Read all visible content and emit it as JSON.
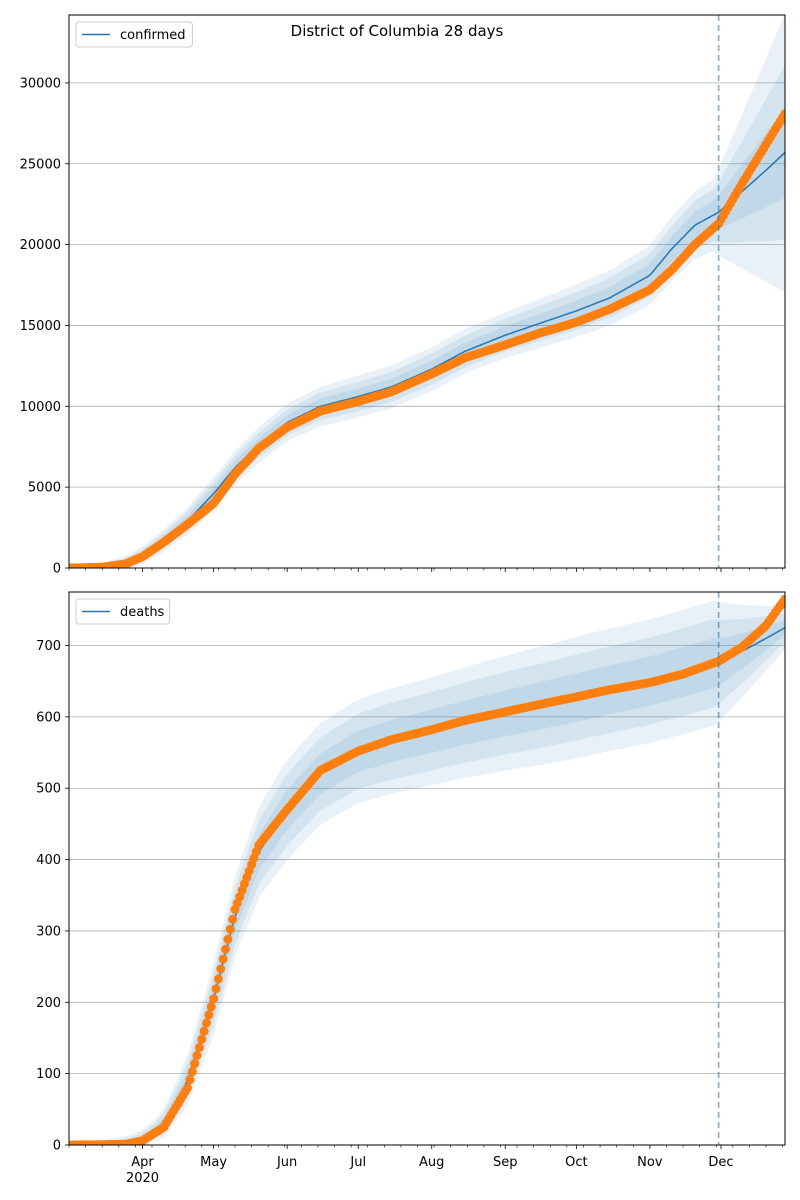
{
  "title": "District of Columbia 28 days",
  "colors": {
    "model": "#1f77b4",
    "observed": "#ff7f0e",
    "band": "#1f77b4",
    "grid": "#b0b0b0",
    "vline": "#1f77b4"
  },
  "x_axis": {
    "range": [
      "2020-03-01",
      "2020-12-28"
    ],
    "month_ticks": [
      {
        "date": "2020-04-01",
        "label": "Apr",
        "sublabel": "2020"
      },
      {
        "date": "2020-05-01",
        "label": "May",
        "sublabel": ""
      },
      {
        "date": "2020-06-01",
        "label": "Jun",
        "sublabel": ""
      },
      {
        "date": "2020-07-01",
        "label": "Jul",
        "sublabel": ""
      },
      {
        "date": "2020-08-01",
        "label": "Aug",
        "sublabel": ""
      },
      {
        "date": "2020-09-01",
        "label": "Sep",
        "sublabel": ""
      },
      {
        "date": "2020-10-01",
        "label": "Oct",
        "sublabel": ""
      },
      {
        "date": "2020-11-01",
        "label": "Nov",
        "sublabel": ""
      },
      {
        "date": "2020-12-01",
        "label": "Dec",
        "sublabel": ""
      }
    ],
    "forecast_start": "2020-11-30"
  },
  "chart_data": [
    {
      "type": "line",
      "series": [
        {
          "name": "confirmed",
          "kind": "model"
        },
        {
          "kind": "observed"
        }
      ],
      "ylim": [
        0,
        34200
      ],
      "yticks": [
        0,
        5000,
        10000,
        15000,
        20000,
        25000,
        30000
      ],
      "grid": true,
      "legend": "top-left",
      "model_points": [
        [
          "2020-03-01",
          0
        ],
        [
          "2020-03-15",
          60
        ],
        [
          "2020-03-25",
          300
        ],
        [
          "2020-04-01",
          800
        ],
        [
          "2020-04-10",
          1700
        ],
        [
          "2020-04-20",
          2900
        ],
        [
          "2020-05-01",
          4600
        ],
        [
          "2020-05-10",
          6200
        ],
        [
          "2020-05-20",
          7600
        ],
        [
          "2020-06-01",
          9000
        ],
        [
          "2020-06-15",
          10000
        ],
        [
          "2020-07-01",
          10600
        ],
        [
          "2020-07-15",
          11200
        ],
        [
          "2020-08-01",
          12300
        ],
        [
          "2020-08-15",
          13400
        ],
        [
          "2020-09-01",
          14400
        ],
        [
          "2020-09-15",
          15100
        ],
        [
          "2020-10-01",
          15900
        ],
        [
          "2020-10-15",
          16700
        ],
        [
          "2020-11-01",
          18100
        ],
        [
          "2020-11-10",
          19700
        ],
        [
          "2020-11-20",
          21200
        ],
        [
          "2020-11-30",
          22000
        ],
        [
          "2020-12-10",
          23300
        ],
        [
          "2020-12-20",
          24600
        ],
        [
          "2020-12-28",
          25700
        ]
      ],
      "observed_points": [
        [
          "2020-03-01",
          0
        ],
        [
          "2020-03-15",
          50
        ],
        [
          "2020-03-25",
          260
        ],
        [
          "2020-04-01",
          700
        ],
        [
          "2020-04-10",
          1600
        ],
        [
          "2020-04-20",
          2700
        ],
        [
          "2020-05-01",
          4000
        ],
        [
          "2020-05-10",
          5800
        ],
        [
          "2020-05-20",
          7400
        ],
        [
          "2020-06-01",
          8700
        ],
        [
          "2020-06-15",
          9700
        ],
        [
          "2020-07-01",
          10300
        ],
        [
          "2020-07-15",
          10900
        ],
        [
          "2020-08-01",
          12000
        ],
        [
          "2020-08-15",
          13000
        ],
        [
          "2020-09-01",
          13800
        ],
        [
          "2020-09-15",
          14500
        ],
        [
          "2020-10-01",
          15200
        ],
        [
          "2020-10-15",
          16000
        ],
        [
          "2020-11-01",
          17200
        ],
        [
          "2020-11-10",
          18400
        ],
        [
          "2020-11-20",
          20000
        ],
        [
          "2020-11-30",
          21300
        ],
        [
          "2020-12-10",
          23800
        ],
        [
          "2020-12-20",
          26200
        ],
        [
          "2020-12-28",
          28100
        ]
      ],
      "bands": [
        {
          "spread": [
            [
              0,
              0
            ],
            [
              0.05,
              300
            ],
            [
              0.2,
              1000
            ],
            [
              0.4,
              1300
            ],
            [
              0.6,
              1400
            ],
            [
              0.8,
              1800
            ],
            [
              0.9,
              2200
            ],
            [
              1,
              8600
            ]
          ]
        },
        {
          "spread": [
            [
              0,
              0
            ],
            [
              0.05,
              200
            ],
            [
              0.2,
              700
            ],
            [
              0.4,
              900
            ],
            [
              0.6,
              1000
            ],
            [
              0.8,
              1300
            ],
            [
              0.9,
              1600
            ],
            [
              1,
              5400
            ]
          ]
        },
        {
          "spread": [
            [
              0,
              0
            ],
            [
              0.05,
              100
            ],
            [
              0.2,
              400
            ],
            [
              0.4,
              500
            ],
            [
              0.6,
              550
            ],
            [
              0.8,
              700
            ],
            [
              0.9,
              900
            ],
            [
              1,
              2800
            ]
          ]
        }
      ]
    },
    {
      "type": "line",
      "series": [
        {
          "name": "deaths",
          "kind": "model"
        },
        {
          "kind": "observed"
        }
      ],
      "ylim": [
        0,
        775
      ],
      "yticks": [
        0,
        100,
        200,
        300,
        400,
        500,
        600,
        700
      ],
      "grid": true,
      "legend": "top-left",
      "model_points": [
        [
          "2020-03-01",
          0
        ],
        [
          "2020-03-25",
          2
        ],
        [
          "2020-04-01",
          8
        ],
        [
          "2020-04-10",
          30
        ],
        [
          "2020-04-20",
          90
        ],
        [
          "2020-05-01",
          205
        ],
        [
          "2020-05-10",
          320
        ],
        [
          "2020-05-20",
          410
        ],
        [
          "2020-06-01",
          470
        ],
        [
          "2020-06-15",
          520
        ],
        [
          "2020-07-01",
          552
        ],
        [
          "2020-07-15",
          566
        ],
        [
          "2020-08-01",
          580
        ],
        [
          "2020-08-15",
          592
        ],
        [
          "2020-09-01",
          605
        ],
        [
          "2020-09-15",
          615
        ],
        [
          "2020-10-01",
          627
        ],
        [
          "2020-10-15",
          638
        ],
        [
          "2020-11-01",
          650
        ],
        [
          "2020-11-15",
          663
        ],
        [
          "2020-11-30",
          677
        ],
        [
          "2020-12-10",
          692
        ],
        [
          "2020-12-20",
          710
        ],
        [
          "2020-12-28",
          725
        ]
      ],
      "observed_points": [
        [
          "2020-03-01",
          0
        ],
        [
          "2020-03-25",
          1
        ],
        [
          "2020-04-01",
          6
        ],
        [
          "2020-04-10",
          25
        ],
        [
          "2020-04-20",
          80
        ],
        [
          "2020-05-01",
          205
        ],
        [
          "2020-05-10",
          330
        ],
        [
          "2020-05-20",
          420
        ],
        [
          "2020-06-01",
          470
        ],
        [
          "2020-06-15",
          525
        ],
        [
          "2020-07-01",
          552
        ],
        [
          "2020-07-15",
          568
        ],
        [
          "2020-08-01",
          582
        ],
        [
          "2020-08-15",
          595
        ],
        [
          "2020-09-01",
          607
        ],
        [
          "2020-09-15",
          617
        ],
        [
          "2020-10-01",
          628
        ],
        [
          "2020-10-15",
          638
        ],
        [
          "2020-11-01",
          648
        ],
        [
          "2020-11-15",
          660
        ],
        [
          "2020-11-30",
          678
        ],
        [
          "2020-12-10",
          698
        ],
        [
          "2020-12-20",
          728
        ],
        [
          "2020-12-28",
          765
        ]
      ],
      "bands": [
        {
          "spread": [
            [
              0,
              0
            ],
            [
              0.12,
              15
            ],
            [
              0.2,
              50
            ],
            [
              0.3,
              70
            ],
            [
              0.5,
              75
            ],
            [
              0.7,
              85
            ],
            [
              0.9,
              88
            ],
            [
              1,
              30
            ]
          ]
        },
        {
          "spread": [
            [
              0,
              0
            ],
            [
              0.12,
              10
            ],
            [
              0.2,
              35
            ],
            [
              0.3,
              50
            ],
            [
              0.5,
              55
            ],
            [
              0.7,
              60
            ],
            [
              0.9,
              62
            ],
            [
              1,
              20
            ]
          ]
        },
        {
          "spread": [
            [
              0,
              0
            ],
            [
              0.12,
              5
            ],
            [
              0.2,
              18
            ],
            [
              0.3,
              28
            ],
            [
              0.5,
              30
            ],
            [
              0.7,
              34
            ],
            [
              0.9,
              35
            ],
            [
              1,
              10
            ]
          ]
        }
      ]
    }
  ]
}
